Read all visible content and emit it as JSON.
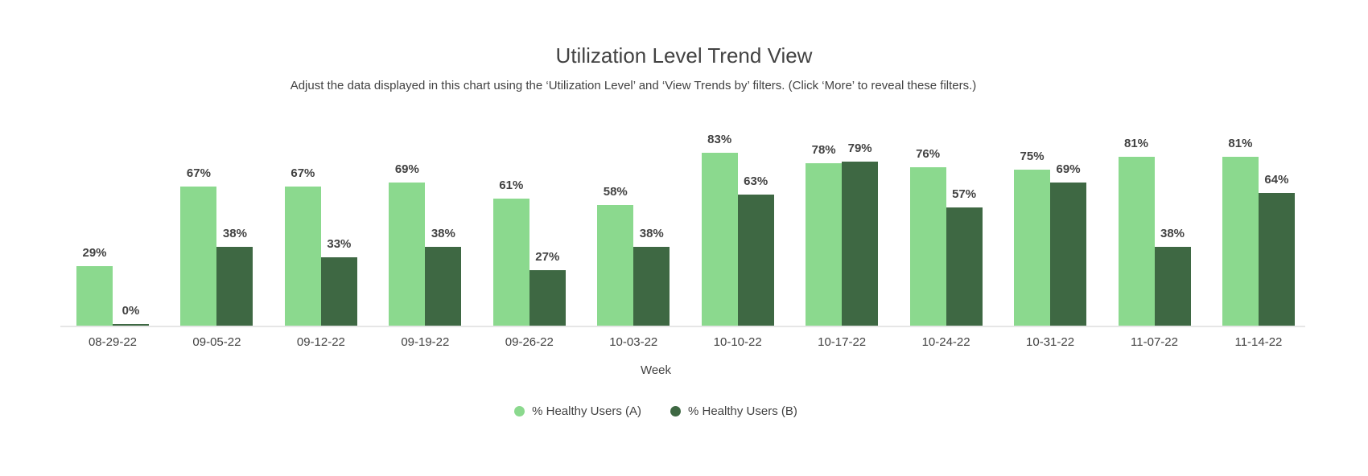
{
  "chart_data": {
    "type": "bar",
    "title": "Utilization Level Trend View",
    "subtitle": "Adjust the data displayed in this chart using the ‘Utilization Level’ and ‘View Trends by’ filters. (Click ‘More’ to reveal these filters.)",
    "xlabel": "Week",
    "ylabel": "",
    "ylim": [
      0,
      100
    ],
    "grid": false,
    "legend_position": "bottom-center",
    "value_suffix": "%",
    "categories": [
      "08-29-22",
      "09-05-22",
      "09-12-22",
      "09-19-22",
      "09-26-22",
      "10-03-22",
      "10-10-22",
      "10-17-22",
      "10-24-22",
      "10-31-22",
      "11-07-22",
      "11-14-22"
    ],
    "series": [
      {
        "name": "% Healthy Users (A)",
        "color": "#8bd98e",
        "values": [
          29,
          67,
          67,
          69,
          61,
          58,
          83,
          78,
          76,
          75,
          81,
          81
        ]
      },
      {
        "name": "% Healthy Users (B)",
        "color": "#3e6843",
        "values": [
          0,
          38,
          33,
          38,
          27,
          38,
          63,
          79,
          57,
          69,
          38,
          64
        ]
      }
    ],
    "colors": {
      "background": "#ffffff",
      "text": "#424242",
      "axis_line": "#e6e6e6"
    }
  }
}
